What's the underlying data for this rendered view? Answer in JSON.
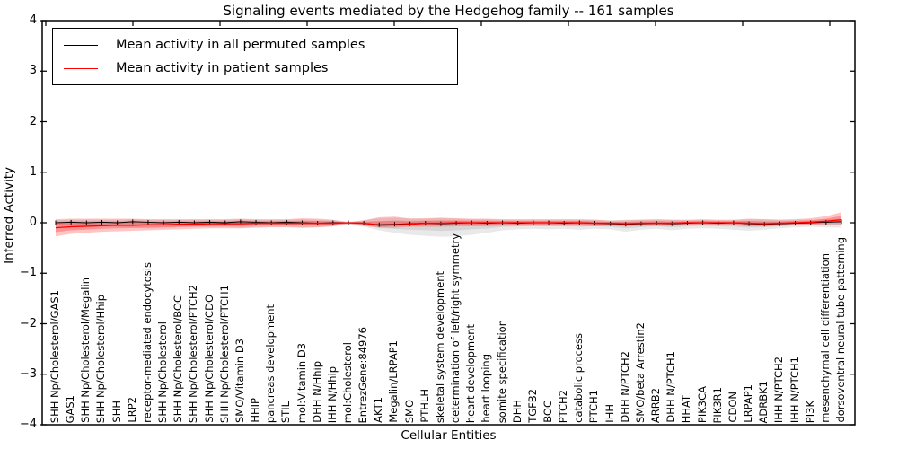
{
  "chart_data": {
    "type": "line",
    "title": "Signaling events mediated by the Hedgehog family -- 161 samples",
    "xlabel": "Cellular Entities",
    "ylabel": "Inferred Activity",
    "ylim": [
      -4,
      4
    ],
    "yticks": [
      "4",
      "3",
      "2",
      "1",
      "0",
      "−1",
      "−2",
      "−3",
      "−4"
    ],
    "grid": false,
    "legend_position": "upper left",
    "categories": [
      "SHH Np/Cholesterol/GAS1",
      "GAS1",
      "SHH Np/Cholesterol/Megalin",
      "SHH Np/Cholesterol/Hhip",
      "SHH",
      "LRP2",
      "receptor-mediated endocytosis",
      "SHH Np/Cholesterol",
      "SHH Np/Cholesterol/BOC",
      "SHH Np/Cholesterol/PTCH2",
      "SHH Np/Cholesterol/CDO",
      "SHH Np/Cholesterol/PTCH1",
      "SMO/Vitamin D3",
      "HHIP",
      "pancreas development",
      "STIL",
      "mol:Vitamin D3",
      "DHH N/Hhip",
      "IHH N/Hhip",
      "mol:Cholesterol",
      "EntrezGene:84976",
      "AKT1",
      "Megalin/LRPAP1",
      "SMO",
      "PTHLH",
      "skeletal system development",
      "determination of left/right symmetry",
      "heart development",
      "heart looping",
      "somite specification",
      "DHH",
      "TGFB2",
      "BOC",
      "PTCH2",
      "catabolic process",
      "PTCH1",
      "IHH",
      "DHH N/PTCH2",
      "SMO/beta Arrestin2",
      "ARRB2",
      "DHH N/PTCH1",
      "HHAT",
      "PIK3CA",
      "PIK3R1",
      "CDON",
      "LRPAP1",
      "ADRBK1",
      "IHH N/PTCH2",
      "IHH N/PTCH1",
      "PI3K",
      "mesenchymal cell differentiation",
      "dorsoventral neural tube patterning"
    ],
    "series": [
      {
        "name": "Mean activity in all permuted samples",
        "color": "#000000",
        "band_color": "#9a9a9a",
        "values": [
          0,
          0.01,
          0,
          0.01,
          0,
          0.02,
          0.01,
          0,
          0.01,
          0,
          0.01,
          0,
          0.02,
          0.01,
          0,
          0.01,
          0,
          -0.01,
          0,
          0,
          -0.01,
          -0.04,
          -0.03,
          -0.02,
          -0.01,
          -0.02,
          -0.01,
          0,
          -0.01,
          0,
          -0.01,
          0,
          0,
          -0.01,
          0,
          -0.01,
          -0.02,
          -0.03,
          -0.02,
          -0.01,
          -0.02,
          -0.01,
          0,
          -0.01,
          0,
          -0.02,
          -0.03,
          -0.02,
          -0.01,
          0,
          0.01,
          0.02
        ],
        "band_upper": [
          0.05,
          0.06,
          0.06,
          0.06,
          0.06,
          0.07,
          0.06,
          0.06,
          0.06,
          0.06,
          0.06,
          0.06,
          0.07,
          0.06,
          0.06,
          0.06,
          0.07,
          0.06,
          0.05,
          0.02,
          0.05,
          0.09,
          0.1,
          0.09,
          0.08,
          0.09,
          0.08,
          0.07,
          0.07,
          0.06,
          0.06,
          0.06,
          0.06,
          0.06,
          0.06,
          0.06,
          0.05,
          0.06,
          0.06,
          0.06,
          0.06,
          0.05,
          0.06,
          0.05,
          0.05,
          0.07,
          0.07,
          0.06,
          0.06,
          0.06,
          0.07,
          0.08
        ],
        "band_lower": [
          -0.06,
          -0.08,
          -0.08,
          -0.08,
          -0.08,
          -0.09,
          -0.12,
          -0.1,
          -0.09,
          -0.08,
          -0.09,
          -0.08,
          -0.1,
          -0.08,
          -0.08,
          -0.08,
          -0.1,
          -0.09,
          -0.07,
          -0.03,
          -0.08,
          -0.15,
          -0.2,
          -0.24,
          -0.26,
          -0.28,
          -0.27,
          -0.24,
          -0.2,
          -0.15,
          -0.13,
          -0.12,
          -0.13,
          -0.12,
          -0.14,
          -0.12,
          -0.13,
          -0.18,
          -0.14,
          -0.12,
          -0.15,
          -0.12,
          -0.11,
          -0.12,
          -0.14,
          -0.16,
          -0.14,
          -0.11,
          -0.09,
          -0.08,
          -0.09,
          -0.1
        ]
      },
      {
        "name": "Mean activity in patient samples",
        "color": "#ff0000",
        "band_color": "#ff4040",
        "values": [
          -0.1,
          -0.08,
          -0.07,
          -0.06,
          -0.05,
          -0.05,
          -0.04,
          -0.04,
          -0.03,
          -0.03,
          -0.02,
          -0.02,
          -0.02,
          -0.01,
          -0.01,
          -0.01,
          -0.01,
          -0.01,
          -0.01,
          0,
          -0.01,
          -0.05,
          -0.04,
          -0.03,
          -0.01,
          -0.01,
          0,
          0,
          0,
          0,
          0,
          0,
          0,
          0,
          0,
          -0.01,
          -0.01,
          -0.02,
          -0.01,
          -0.01,
          -0.01,
          0,
          0,
          0,
          0,
          -0.01,
          -0.02,
          -0.01,
          0,
          0.01,
          0.03,
          0.06
        ],
        "band_upper": [
          0.07,
          0.08,
          0.08,
          0.08,
          0.08,
          0.08,
          0.07,
          0.07,
          0.07,
          0.07,
          0.07,
          0.07,
          0.08,
          0.07,
          0.07,
          0.07,
          0.09,
          0.08,
          0.06,
          0.01,
          0.05,
          0.11,
          0.12,
          0.08,
          0.09,
          0.1,
          0.09,
          0.08,
          0.08,
          0.07,
          0.07,
          0.07,
          0.07,
          0.07,
          0.07,
          0.06,
          0.04,
          0.05,
          0.06,
          0.07,
          0.06,
          0.06,
          0.07,
          0.06,
          0.06,
          0.08,
          0.07,
          0.06,
          0.07,
          0.09,
          0.13,
          0.21
        ],
        "band_lower": [
          -0.27,
          -0.22,
          -0.2,
          -0.18,
          -0.17,
          -0.16,
          -0.15,
          -0.14,
          -0.13,
          -0.12,
          -0.11,
          -0.11,
          -0.11,
          -0.1,
          -0.09,
          -0.09,
          -0.1,
          -0.09,
          -0.07,
          -0.02,
          -0.06,
          -0.1,
          -0.1,
          -0.08,
          -0.08,
          -0.08,
          -0.07,
          -0.07,
          -0.07,
          -0.06,
          -0.06,
          -0.06,
          -0.06,
          -0.06,
          -0.06,
          -0.07,
          -0.06,
          -0.07,
          -0.06,
          -0.06,
          -0.06,
          -0.05,
          -0.05,
          -0.05,
          -0.05,
          -0.07,
          -0.07,
          -0.06,
          -0.05,
          -0.04,
          -0.03,
          -0.03
        ]
      }
    ]
  }
}
